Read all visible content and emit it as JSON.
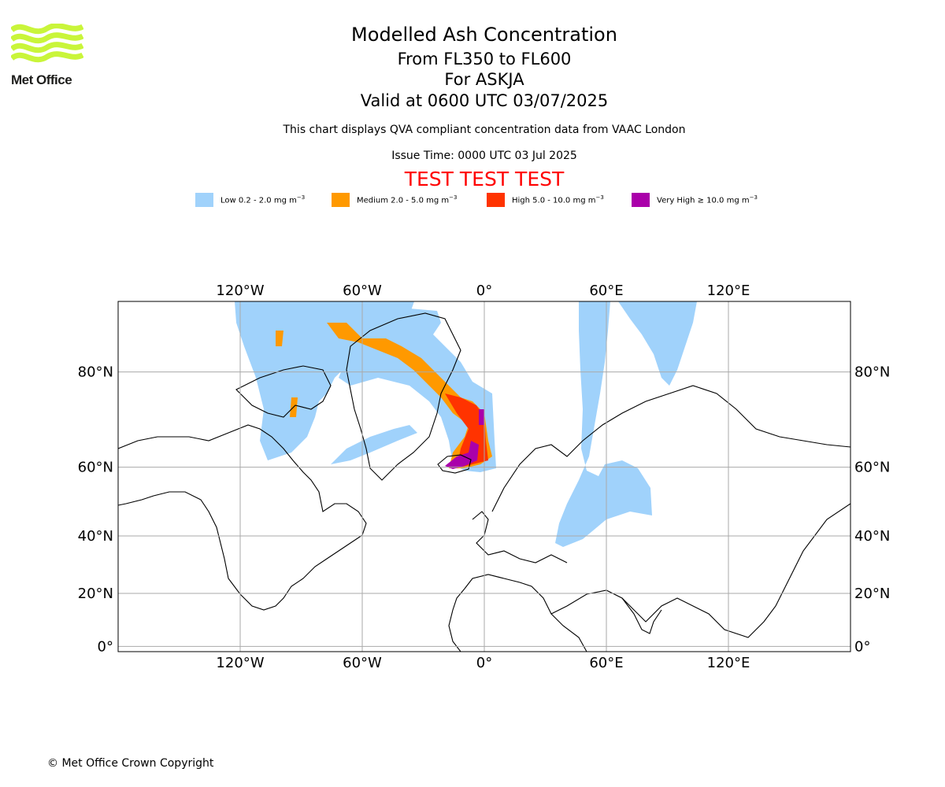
{
  "branding": {
    "logo_text": "Met Office",
    "logo_color": "#c9f53a"
  },
  "header": {
    "title": "Modelled Ash Concentration",
    "levels": "From FL350 to FL600",
    "volcano": "For ASKJA",
    "valid": "Valid at 0600 UTC 03/07/2025",
    "description": "This chart displays QVA compliant concentration data from VAAC London",
    "issue_time": "Issue Time: 0000 UTC 03 Jul 2025",
    "test_banner": "TEST TEST TEST",
    "test_color": "#ff0000"
  },
  "legend": [
    {
      "label": "Low 0.2 - 2.0 mg m",
      "unit_exp": "−3",
      "color": "#a0d2fb"
    },
    {
      "label": "Medium 2.0 - 5.0 mg m",
      "unit_exp": "−3",
      "color": "#ff9900"
    },
    {
      "label": "High 5.0 - 10.0 mg m",
      "unit_exp": "−3",
      "color": "#ff3300"
    },
    {
      "label": "Very High ≥ 10.0 mg m",
      "unit_exp": "−3",
      "color": "#aa00aa"
    }
  ],
  "map": {
    "lon_range": [
      -180,
      180
    ],
    "lat_range": [
      -2,
      90
    ],
    "lon_ticks": [
      {
        "value": -120,
        "label": "120°W"
      },
      {
        "value": -60,
        "label": "60°W"
      },
      {
        "value": 0,
        "label": "0°"
      },
      {
        "value": 60,
        "label": "60°E"
      },
      {
        "value": 120,
        "label": "120°E"
      }
    ],
    "lat_ticks": [
      {
        "value": 0,
        "label": "0°"
      },
      {
        "value": 20,
        "label": "20°N"
      },
      {
        "value": 40,
        "label": "40°N"
      },
      {
        "value": 60,
        "label": "60°N"
      },
      {
        "value": 80,
        "label": "80°N"
      }
    ],
    "grid": true
  },
  "footer": {
    "copyright": "© Met Office Crown Copyright"
  }
}
